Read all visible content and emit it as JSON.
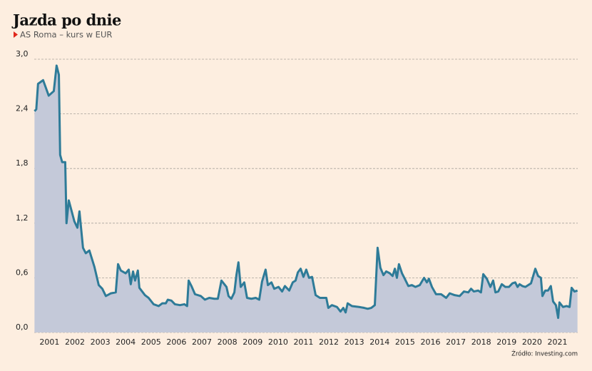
{
  "chart_data": {
    "type": "area",
    "title": "Jazda po dnie",
    "subtitle": "AS Roma – kurs w EUR",
    "source": "Źródło: Investing.com",
    "color": "#2e7b98",
    "fill": "#c4c9d9",
    "grid": true,
    "xlim": [
      2000.9,
      2022.3
    ],
    "ylim": [
      0,
      3.0
    ],
    "yticks": [
      {
        "value": 0,
        "label": "0,0"
      },
      {
        "value": 0.6,
        "label": "0,6"
      },
      {
        "value": 1.2,
        "label": "1,2"
      },
      {
        "value": 1.8,
        "label": "1,8"
      },
      {
        "value": 2.4,
        "label": "2,4"
      },
      {
        "value": 3.0,
        "label": "3,0"
      }
    ],
    "xticks": [
      {
        "value": 2001.5,
        "label": "2001"
      },
      {
        "value": 2002.5,
        "label": "2002"
      },
      {
        "value": 2003.5,
        "label": "2003"
      },
      {
        "value": 2004.5,
        "label": "2004"
      },
      {
        "value": 2005.5,
        "label": "2005"
      },
      {
        "value": 2006.5,
        "label": "2006"
      },
      {
        "value": 2007.5,
        "label": "2007"
      },
      {
        "value": 2008.5,
        "label": "2008"
      },
      {
        "value": 2009.5,
        "label": "2009"
      },
      {
        "value": 2010.5,
        "label": "2010"
      },
      {
        "value": 2011.5,
        "label": "2011"
      },
      {
        "value": 2012.5,
        "label": "2012"
      },
      {
        "value": 2013.5,
        "label": "2013"
      },
      {
        "value": 2014.5,
        "label": "2014"
      },
      {
        "value": 2015.5,
        "label": "2015"
      },
      {
        "value": 2016.5,
        "label": "2016"
      },
      {
        "value": 2017.5,
        "label": "2017"
      },
      {
        "value": 2018.5,
        "label": "2018"
      },
      {
        "value": 2019.5,
        "label": "2019"
      },
      {
        "value": 2020.5,
        "label": "2020"
      },
      {
        "value": 2021.5,
        "label": "2021"
      }
    ],
    "x": [
      2000.91,
      2000.98,
      2001.05,
      2001.25,
      2001.47,
      2001.67,
      2001.78,
      2001.87,
      2001.92,
      2002.0,
      2002.12,
      2002.17,
      2002.26,
      2002.48,
      2002.6,
      2002.68,
      2002.82,
      2002.93,
      2003.07,
      2003.27,
      2003.44,
      2003.58,
      2003.72,
      2003.92,
      2004.11,
      2004.2,
      2004.31,
      2004.5,
      2004.62,
      2004.7,
      2004.79,
      2004.87,
      2004.98,
      2005.04,
      2005.26,
      2005.4,
      2005.6,
      2005.8,
      2005.94,
      2006.08,
      2006.16,
      2006.3,
      2006.44,
      2006.64,
      2006.81,
      2006.92,
      2006.98,
      2007.09,
      2007.23,
      2007.46,
      2007.62,
      2007.79,
      2007.99,
      2008.13,
      2008.27,
      2008.47,
      2008.55,
      2008.66,
      2008.78,
      2008.86,
      2008.94,
      2009.03,
      2009.17,
      2009.28,
      2009.45,
      2009.62,
      2009.76,
      2009.87,
      2010.01,
      2010.1,
      2010.24,
      2010.35,
      2010.52,
      2010.66,
      2010.77,
      2010.94,
      2011.08,
      2011.19,
      2011.28,
      2011.39,
      2011.5,
      2011.61,
      2011.72,
      2011.84,
      2011.98,
      2012.15,
      2012.4,
      2012.48,
      2012.62,
      2012.82,
      2012.96,
      2013.07,
      2013.16,
      2013.24,
      2013.41,
      2013.69,
      2013.89,
      2014.03,
      2014.17,
      2014.31,
      2014.42,
      2014.53,
      2014.65,
      2014.76,
      2014.9,
      2015.01,
      2015.1,
      2015.18,
      2015.26,
      2015.38,
      2015.49,
      2015.63,
      2015.77,
      2015.91,
      2016.08,
      2016.25,
      2016.36,
      2016.44,
      2016.56,
      2016.72,
      2016.92,
      2017.12,
      2017.26,
      2017.45,
      2017.65,
      2017.82,
      2017.99,
      2018.1,
      2018.21,
      2018.38,
      2018.49,
      2018.58,
      2018.72,
      2018.86,
      2018.97,
      2019.06,
      2019.17,
      2019.31,
      2019.45,
      2019.59,
      2019.73,
      2019.84,
      2019.93,
      2020.01,
      2020.12,
      2020.24,
      2020.35,
      2020.46,
      2020.63,
      2020.74,
      2020.85,
      2020.91,
      2021.02,
      2021.13,
      2021.24,
      2021.33,
      2021.44,
      2021.53,
      2021.58,
      2021.72,
      2021.86,
      2021.98,
      2022.06,
      2022.17,
      2022.29
    ],
    "values": [
      2.43,
      2.45,
      2.73,
      2.77,
      2.6,
      2.65,
      2.93,
      2.83,
      1.95,
      1.87,
      1.87,
      1.2,
      1.45,
      1.22,
      1.15,
      1.33,
      0.93,
      0.87,
      0.9,
      0.72,
      0.52,
      0.48,
      0.4,
      0.43,
      0.44,
      0.75,
      0.68,
      0.65,
      0.69,
      0.53,
      0.67,
      0.57,
      0.68,
      0.49,
      0.41,
      0.38,
      0.31,
      0.29,
      0.32,
      0.32,
      0.36,
      0.35,
      0.31,
      0.3,
      0.31,
      0.29,
      0.57,
      0.51,
      0.42,
      0.4,
      0.36,
      0.38,
      0.37,
      0.37,
      0.57,
      0.5,
      0.4,
      0.37,
      0.44,
      0.63,
      0.77,
      0.5,
      0.55,
      0.38,
      0.37,
      0.38,
      0.36,
      0.56,
      0.69,
      0.52,
      0.55,
      0.48,
      0.5,
      0.45,
      0.51,
      0.46,
      0.55,
      0.57,
      0.66,
      0.7,
      0.61,
      0.69,
      0.6,
      0.61,
      0.41,
      0.38,
      0.38,
      0.27,
      0.3,
      0.28,
      0.23,
      0.27,
      0.22,
      0.32,
      0.29,
      0.28,
      0.27,
      0.26,
      0.27,
      0.3,
      0.93,
      0.71,
      0.63,
      0.67,
      0.65,
      0.62,
      0.7,
      0.6,
      0.75,
      0.65,
      0.59,
      0.51,
      0.52,
      0.5,
      0.52,
      0.6,
      0.55,
      0.59,
      0.5,
      0.42,
      0.42,
      0.38,
      0.43,
      0.41,
      0.4,
      0.45,
      0.44,
      0.48,
      0.45,
      0.46,
      0.44,
      0.64,
      0.59,
      0.5,
      0.57,
      0.44,
      0.45,
      0.53,
      0.5,
      0.5,
      0.54,
      0.55,
      0.5,
      0.53,
      0.51,
      0.5,
      0.52,
      0.54,
      0.7,
      0.62,
      0.6,
      0.4,
      0.46,
      0.46,
      0.51,
      0.34,
      0.3,
      0.16,
      0.33,
      0.28,
      0.29,
      0.28,
      0.49,
      0.45,
      0.46
    ]
  }
}
